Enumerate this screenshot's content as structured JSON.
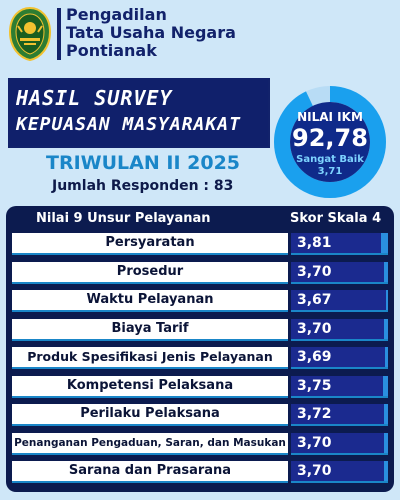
{
  "institution": {
    "line1": "Pengadilan",
    "line2": "Tata Usaha Negara",
    "line3": "Pontianak"
  },
  "title": {
    "line1": "HASIL SURVEY",
    "line2": "KEPUASAN MASYARAKAT"
  },
  "period": "TRIWULAN II 2025",
  "respondents": "Jumlah Responden : 83",
  "ikm": {
    "label": "NILAI IKM",
    "value": "92,78",
    "category": "Sangat Baik",
    "scale_value": "3,71",
    "percent": 92.78
  },
  "table": {
    "header_left": "Nilai 9 Unsur Pelayanan",
    "header_right": "Skor Skala 4",
    "rows": [
      {
        "label": "Persyaratan",
        "score": "3,81"
      },
      {
        "label": "Prosedur",
        "score": "3,70"
      },
      {
        "label": "Waktu Pelayanan",
        "score": "3,67"
      },
      {
        "label": "Biaya Tarif",
        "score": "3,70"
      },
      {
        "label": "Produk Spesifikasi Jenis Pelayanan",
        "score": "3,69"
      },
      {
        "label": "Kompetensi Pelaksana",
        "score": "3,75"
      },
      {
        "label": "Perilaku Pelaksana",
        "score": "3,72"
      },
      {
        "label": "Penanganan Pengaduan, Saran, dan Masukan",
        "score": "3,70"
      },
      {
        "label": "Sarana dan Prasarana",
        "score": "3,70"
      }
    ]
  },
  "colors": {
    "background": "#cfe7f8",
    "navy": "#10206b",
    "accent": "#1a86c8",
    "ring": "#1aa0ee"
  },
  "icons": {
    "logo": "court-emblem-icon"
  }
}
